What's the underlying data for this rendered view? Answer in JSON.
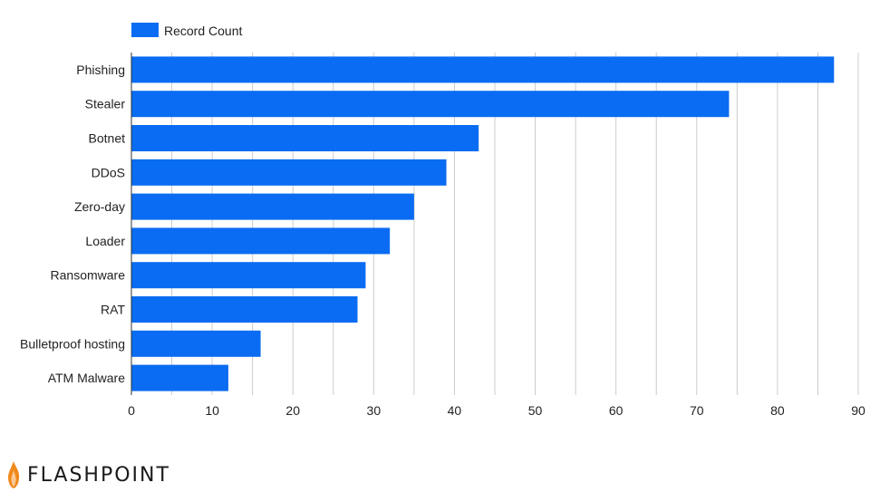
{
  "chart_data": {
    "type": "bar",
    "orientation": "horizontal",
    "categories": [
      "Phishing",
      "Stealer",
      "Botnet",
      "DDoS",
      "Zero-day",
      "Loader",
      "Ransomware",
      "RAT",
      "Bulletproof hosting",
      "ATM Malware"
    ],
    "series": [
      {
        "name": "Record Count",
        "values": [
          87,
          74,
          43,
          39,
          35,
          32,
          29,
          28,
          16,
          12
        ],
        "color": "#0a6cf2"
      }
    ],
    "xlim": [
      0,
      90
    ],
    "xticks": [
      "0",
      "10",
      "20",
      "30",
      "40",
      "50",
      "60",
      "70",
      "80",
      "90"
    ],
    "grid": "vertical",
    "legend": "top-left",
    "title": "",
    "xlabel": "",
    "ylabel": ""
  },
  "brand": {
    "name": "FLASHPOINT",
    "logo_icon": "flame-icon",
    "flame_color": "#f08a1c"
  }
}
